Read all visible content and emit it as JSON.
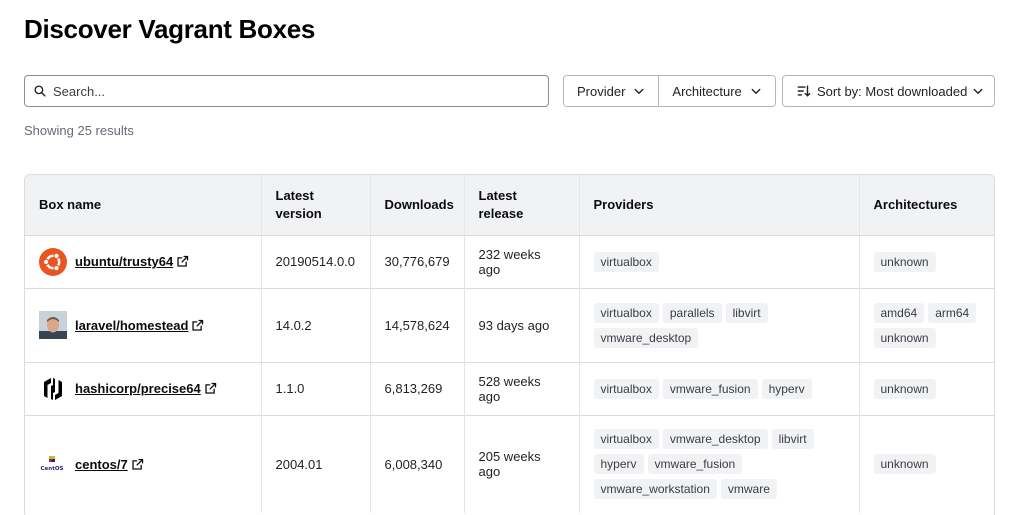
{
  "page": {
    "title": "Discover Vagrant Boxes"
  },
  "search": {
    "placeholder": "Search..."
  },
  "filters": {
    "provider_label": "Provider",
    "architecture_label": "Architecture"
  },
  "sort": {
    "label": "Sort by: Most downloaded"
  },
  "results": {
    "text": "Showing 25 results"
  },
  "table": {
    "headers": {
      "box_name": "Box name",
      "latest_version_line1": "Latest",
      "latest_version_line2": "version",
      "downloads": "Downloads",
      "latest_release": "Latest release",
      "providers": "Providers",
      "architectures": "Architectures"
    },
    "rows": [
      {
        "name": "ubuntu/trusty64",
        "avatar": "ubuntu-logo",
        "version": "20190514.0.0",
        "downloads": "30,776,679",
        "release": "232 weeks ago",
        "providers": [
          "virtualbox"
        ],
        "architectures": [
          "unknown"
        ]
      },
      {
        "name": "laravel/homestead",
        "avatar": "user-photo",
        "version": "14.0.2",
        "downloads": "14,578,624",
        "release": "93 days ago",
        "providers": [
          "virtualbox",
          "parallels",
          "libvirt",
          "vmware_desktop"
        ],
        "architectures": [
          "amd64",
          "arm64",
          "unknown"
        ]
      },
      {
        "name": "hashicorp/precise64",
        "avatar": "hashicorp-logo",
        "version": "1.1.0",
        "downloads": "6,813,269",
        "release": "528 weeks ago",
        "providers": [
          "virtualbox",
          "vmware_fusion",
          "hyperv"
        ],
        "architectures": [
          "unknown"
        ]
      },
      {
        "name": "centos/7",
        "avatar": "centos-logo",
        "avatar_text": "CentOS",
        "version": "2004.01",
        "downloads": "6,008,340",
        "release": "205 weeks ago",
        "providers": [
          "virtualbox",
          "vmware_desktop",
          "libvirt",
          "hyperv",
          "vmware_fusion",
          "vmware_workstation",
          "vmware"
        ],
        "architectures": [
          "unknown"
        ]
      }
    ]
  },
  "colors": {
    "ubuntu": "#e95420",
    "tag_bg": "#f1f2f3",
    "header_bg": "#f1f2f3"
  }
}
